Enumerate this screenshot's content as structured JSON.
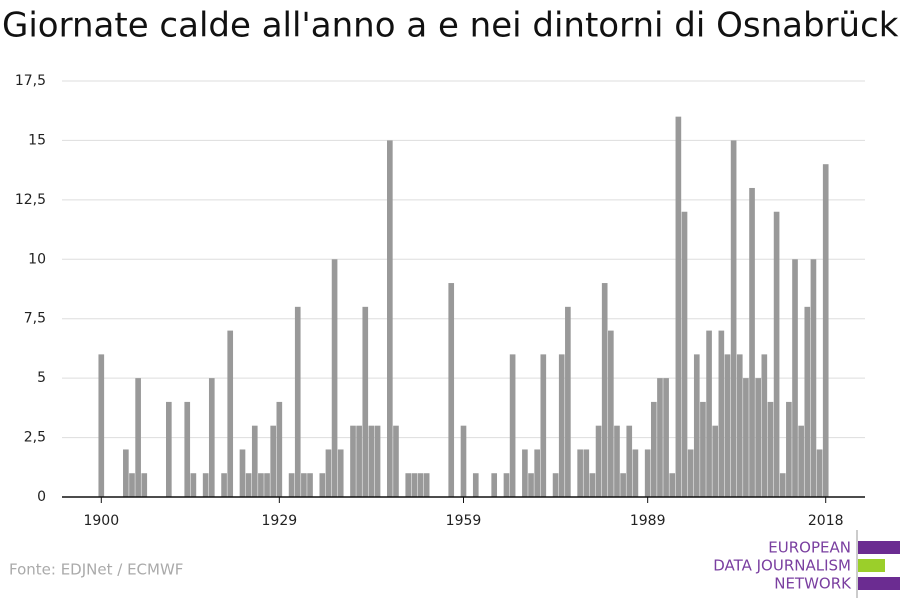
{
  "chart_data": {
    "type": "bar",
    "title": "Giornate calde all'anno a e nei dintorni di Osnabrück",
    "source": "Fonte: EDJNet / ECMWF",
    "logo": [
      "EUROPEAN",
      "DATA JOURNALISM",
      "NETWORK"
    ],
    "color": "#999999",
    "x": [
      1900,
      1901,
      1902,
      1903,
      1904,
      1905,
      1906,
      1907,
      1908,
      1909,
      1910,
      1911,
      1912,
      1913,
      1914,
      1915,
      1916,
      1917,
      1918,
      1919,
      1920,
      1921,
      1922,
      1923,
      1924,
      1925,
      1926,
      1927,
      1928,
      1929,
      1930,
      1931,
      1932,
      1933,
      1934,
      1935,
      1936,
      1937,
      1938,
      1939,
      1940,
      1941,
      1942,
      1943,
      1944,
      1945,
      1946,
      1947,
      1948,
      1949,
      1950,
      1951,
      1952,
      1953,
      1954,
      1955,
      1956,
      1957,
      1958,
      1959,
      1960,
      1961,
      1962,
      1963,
      1964,
      1965,
      1966,
      1967,
      1968,
      1969,
      1970,
      1971,
      1972,
      1973,
      1974,
      1975,
      1976,
      1977,
      1978,
      1979,
      1980,
      1981,
      1982,
      1983,
      1984,
      1985,
      1986,
      1987,
      1988,
      1989,
      1990,
      1991,
      1992,
      1993,
      1994,
      1995,
      1996,
      1997,
      1998,
      1999,
      2000,
      2001,
      2002,
      2003,
      2004,
      2005,
      2006,
      2007,
      2008,
      2009,
      2010,
      2011,
      2012,
      2013,
      2014,
      2015,
      2016,
      2017,
      2018
    ],
    "values": [
      6,
      0,
      0,
      0,
      2,
      1,
      5,
      1,
      0,
      0,
      0,
      4,
      0,
      0,
      4,
      1,
      0,
      1,
      5,
      0,
      1,
      7,
      0,
      2,
      1,
      3,
      1,
      1,
      3,
      4,
      0,
      1,
      8,
      1,
      1,
      0,
      1,
      2,
      10,
      2,
      0,
      3,
      3,
      8,
      3,
      3,
      0,
      15,
      3,
      0,
      1,
      1,
      1,
      1,
      0,
      0,
      0,
      9,
      0,
      3,
      0,
      1,
      0,
      0,
      1,
      0,
      1,
      6,
      0,
      2,
      1,
      2,
      6,
      0,
      1,
      6,
      8,
      0,
      2,
      2,
      1,
      3,
      9,
      7,
      3,
      1,
      3,
      2,
      0,
      2,
      4,
      5,
      5,
      1,
      16,
      12,
      2,
      6,
      4,
      7,
      3,
      7,
      6,
      15,
      6,
      5,
      13,
      5,
      6,
      4,
      12,
      1,
      4,
      10,
      3,
      8,
      10,
      2,
      14
    ],
    "xlim": [
      1893.6,
      2024.4
    ],
    "xticks": [
      1900,
      1929,
      1959,
      1989,
      2018
    ],
    "ylim": [
      0,
      17.5
    ],
    "yticks": [
      0,
      {
        "value": 2.5,
        "label": "2,5"
      },
      5,
      {
        "value": 7.5,
        "label": "7,5"
      },
      10,
      {
        "value": 12.5,
        "label": "12,5"
      },
      15,
      {
        "value": 17.5,
        "label": "17,5"
      }
    ],
    "grid": true
  }
}
